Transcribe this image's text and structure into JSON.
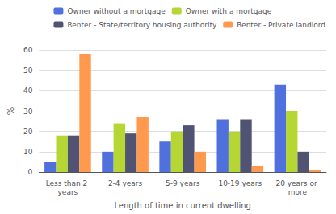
{
  "chart_data": {
    "type": "bar",
    "categories": [
      "Less than 2 years",
      "2-4 years",
      "5-9 years",
      "10-19 years",
      "20 years or more"
    ],
    "series": [
      {
        "name": "Owner without a mortgage",
        "values": [
          5,
          10,
          15,
          26,
          43
        ]
      },
      {
        "name": "Owner with a mortgage",
        "values": [
          18,
          24,
          20,
          20,
          30
        ]
      },
      {
        "name": "Renter - State/territory housing authority",
        "values": [
          18,
          19,
          23,
          26,
          10
        ]
      },
      {
        "name": "Renter - Private landlord",
        "values": [
          58,
          27,
          10,
          3,
          1
        ]
      }
    ],
    "xlabel": "Length of time in current dwelling",
    "ylabel": "%",
    "ylim": [
      0,
      60
    ],
    "yticks": [
      0,
      10,
      20,
      30,
      40,
      50,
      60
    ],
    "grid": true,
    "legend": "upper right"
  }
}
